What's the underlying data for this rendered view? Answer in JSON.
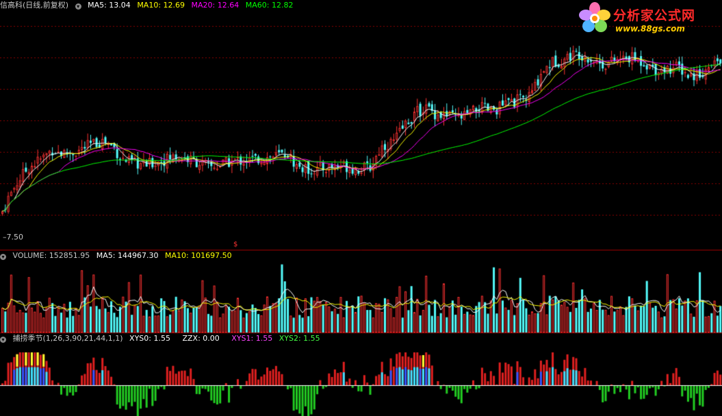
{
  "price_header": {
    "title": "信高科(日线,前复权)",
    "ma5": "MA5: 13.04",
    "ma10": "MA10: 12.69",
    "ma20": "MA20: 12.64",
    "ma60": "MA60: 12.82"
  },
  "price_axis_label": "7.50",
  "price_marker": "$",
  "volume_header": {
    "volume": "VOLUME: 152851.95",
    "ma5": "MA5: 144967.30",
    "ma10": "MA10: 101697.50"
  },
  "indicator_header": {
    "name": "捕捞季节(1,26,3,90,21,44,1,1)",
    "xys0": "XYS0: 1.55",
    "zzx": "ZZX: 0.00",
    "xys1": "XYS1: 1.55",
    "xys2": "XYS2: 1.55"
  },
  "watermark": {
    "title": "分析家公式网",
    "url": "www.88gs.com"
  },
  "colors": {
    "up": "#ff3232",
    "down": "#54fcfc",
    "ma5": "#ffffff",
    "ma10": "#ffff00",
    "ma20": "#ff00ff",
    "ma60": "#00ff00",
    "grid": "#8b0000",
    "ind_pos": "#e02020",
    "ind_neg": "#22cc22",
    "ind_blue": "#3355ff",
    "ind_cyan": "#40e0ff",
    "ind_yellow": "#ffff30"
  },
  "icons": {
    "header_dot": "circle-dropdown-icon",
    "logo": "flower-logo-icon"
  },
  "price_shape": [
    [
      0,
      8.5
    ],
    [
      10,
      9.2
    ],
    [
      25,
      10.0
    ],
    [
      40,
      10.6
    ],
    [
      60,
      11.0
    ],
    [
      75,
      11.4
    ],
    [
      90,
      11.2
    ],
    [
      110,
      11.3
    ],
    [
      130,
      11.6
    ],
    [
      150,
      11.8
    ],
    [
      165,
      11.5
    ],
    [
      175,
      11.0
    ],
    [
      190,
      10.8
    ],
    [
      210,
      10.7
    ],
    [
      235,
      10.9
    ],
    [
      255,
      11.1
    ],
    [
      270,
      11.0
    ],
    [
      290,
      10.8
    ],
    [
      305,
      10.6
    ],
    [
      320,
      10.7
    ],
    [
      340,
      10.9
    ],
    [
      360,
      10.9
    ],
    [
      380,
      11.0
    ],
    [
      400,
      11.1
    ],
    [
      420,
      11.2
    ],
    [
      430,
      10.7
    ],
    [
      445,
      10.5
    ],
    [
      460,
      10.5
    ],
    [
      480,
      10.6
    ],
    [
      500,
      10.7
    ],
    [
      520,
      10.5
    ],
    [
      540,
      10.6
    ],
    [
      555,
      11.5
    ],
    [
      575,
      11.8
    ],
    [
      590,
      12.5
    ],
    [
      605,
      13.0
    ],
    [
      620,
      13.3
    ],
    [
      635,
      13.0
    ],
    [
      650,
      12.9
    ],
    [
      670,
      12.8
    ],
    [
      685,
      13.0
    ],
    [
      700,
      13.3
    ],
    [
      715,
      13.1
    ],
    [
      735,
      13.4
    ],
    [
      755,
      13.6
    ],
    [
      770,
      13.7
    ],
    [
      780,
      14.2
    ],
    [
      790,
      14.9
    ],
    [
      805,
      15.3
    ],
    [
      820,
      15.4
    ],
    [
      830,
      15.6
    ],
    [
      845,
      15.7
    ],
    [
      860,
      15.5
    ],
    [
      880,
      15.2
    ],
    [
      900,
      15.4
    ],
    [
      920,
      15.5
    ],
    [
      940,
      15.3
    ],
    [
      955,
      15.0
    ],
    [
      970,
      15.0
    ],
    [
      990,
      15.1
    ],
    [
      1005,
      14.7
    ],
    [
      1020,
      14.8
    ],
    [
      1035,
      15.0
    ],
    [
      1055,
      15.6
    ]
  ]
}
